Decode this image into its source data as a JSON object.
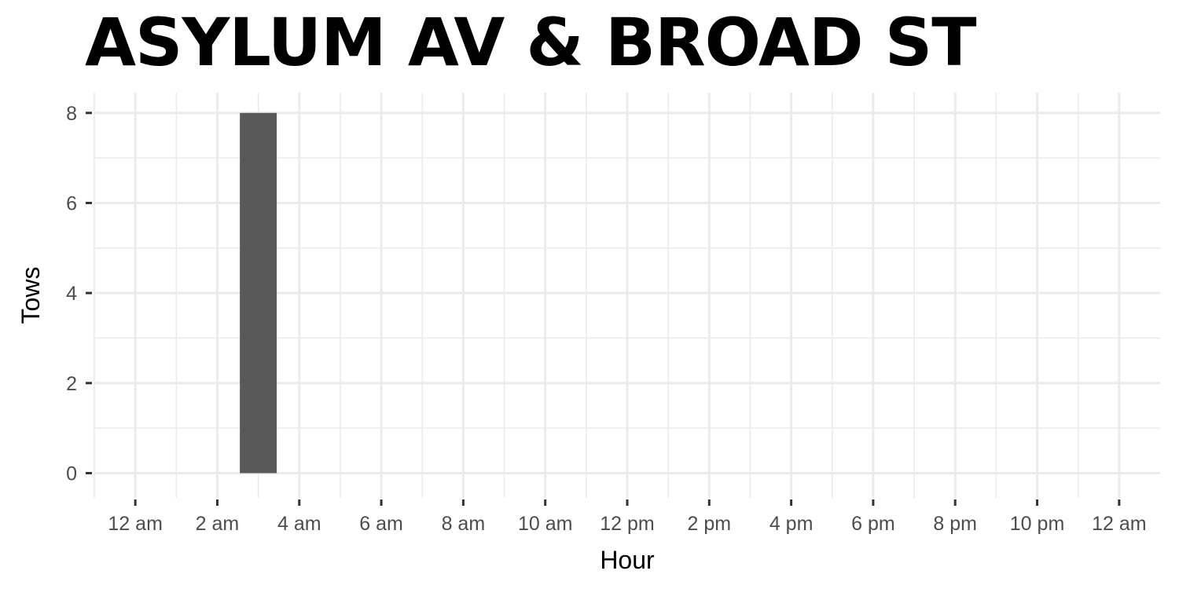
{
  "chart_data": {
    "type": "bar",
    "title": "ASYLUM AV & BROAD ST",
    "xlabel": "Hour",
    "ylabel": "Tows",
    "x_unit": "hour of day",
    "x_range": [
      -1,
      25
    ],
    "x_ticks": [
      0,
      2,
      4,
      6,
      8,
      10,
      12,
      14,
      16,
      18,
      20,
      22,
      24
    ],
    "x_tick_labels": [
      "12 am",
      "2 am",
      "4 am",
      "6 am",
      "8 am",
      "10 am",
      "12 pm",
      "2 pm",
      "4 pm",
      "6 pm",
      "8 pm",
      "10 pm",
      "12 am"
    ],
    "ylim": [
      -0.55,
      8.45
    ],
    "y_ticks": [
      0,
      2,
      4,
      6,
      8
    ],
    "y_tick_labels": [
      "0",
      "2",
      "4",
      "6",
      "8"
    ],
    "bar_width_hours": 0.9,
    "grid": true,
    "bar_color": "#595959",
    "grid_color": "#ebebeb",
    "series": [
      {
        "x": [
          3
        ],
        "values": [
          8
        ]
      }
    ]
  }
}
